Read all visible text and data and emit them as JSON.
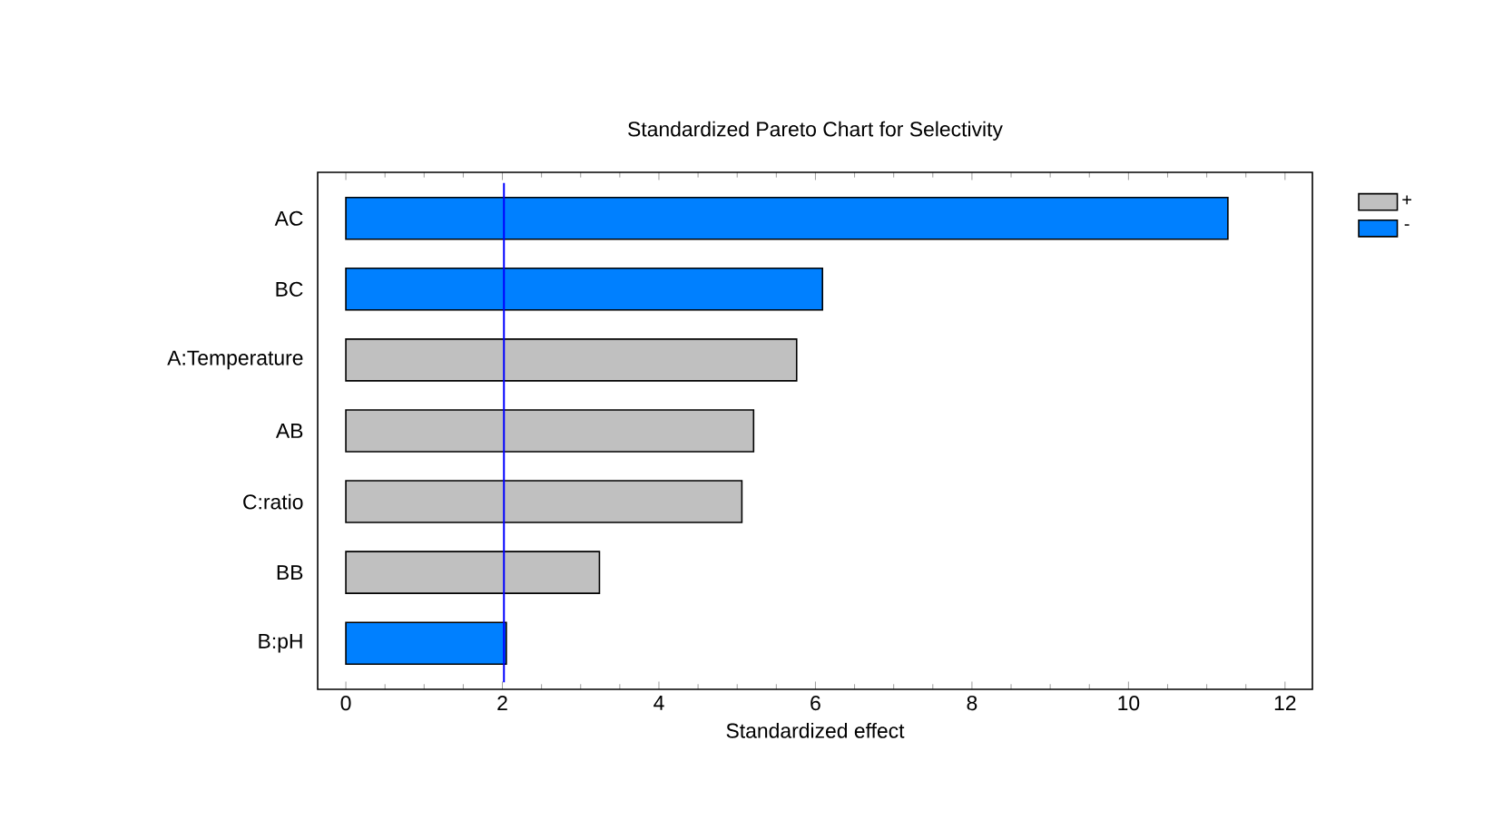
{
  "chart_data": {
    "type": "bar",
    "orientation": "horizontal",
    "title": "Standardized Pareto Chart for Selectivity",
    "xlabel": "Standardized effect",
    "categories": [
      "AC",
      "BC",
      "A:Temperature",
      "AB",
      "C:ratio",
      "BB",
      "B:pH"
    ],
    "series": [
      {
        "name": "+",
        "color": "#c0c0c0",
        "values": [
          null,
          null,
          5.76,
          5.21,
          5.06,
          3.24,
          null
        ]
      },
      {
        "name": "-",
        "color": "#0080ff",
        "values": [
          11.27,
          6.09,
          null,
          null,
          null,
          null,
          2.05
        ]
      }
    ],
    "xlim": [
      -0.36,
      12.35
    ],
    "xticks": [
      0,
      2,
      4,
      6,
      8,
      10,
      12
    ],
    "ref_lines": [
      {
        "axis": "x",
        "value": 2.02,
        "color": "#0000ff"
      }
    ],
    "legend": "right",
    "grid": false
  }
}
